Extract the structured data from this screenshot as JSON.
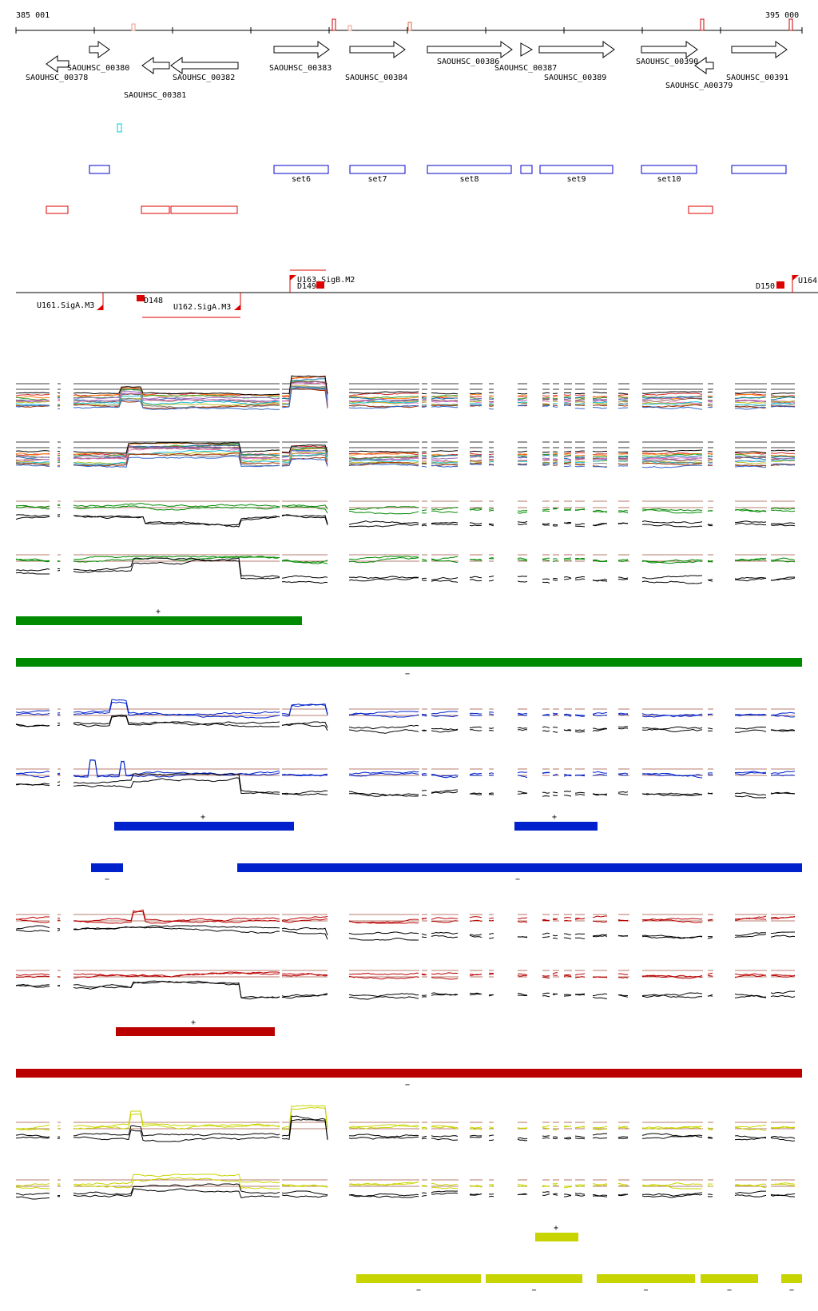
{
  "coord": {
    "start": "385 001",
    "end": "395 000"
  },
  "colors": {
    "gene": "#000000",
    "setBox": "#0000cc",
    "redBox": "#dd0000",
    "green": "#008a00",
    "blue": "#0022cc",
    "red": "#bb0000",
    "yellow": "#c8d400",
    "thresh": "#a05040",
    "black": "#000000",
    "cyan": "#00cccc"
  },
  "genes": [
    {
      "label": "SAOUHSC_00378",
      "strand": "-"
    },
    {
      "label": "SAOUHSC_00380",
      "strand": "+"
    },
    {
      "label": "SAOUHSC_00381",
      "strand": "-"
    },
    {
      "label": "SAOUHSC_00382",
      "strand": "-"
    },
    {
      "label": "SAOUHSC_00383",
      "strand": "+"
    },
    {
      "label": "SAOUHSC_00384",
      "strand": "+"
    },
    {
      "label": "SAOUHSC_00386",
      "strand": "+"
    },
    {
      "label": "SAOUHSC_00387",
      "strand": "+"
    },
    {
      "label": "SAOUHSC_00389",
      "strand": "+"
    },
    {
      "label": "SAOUHSC_00390",
      "strand": "+"
    },
    {
      "label": "SAOUHSC_A00379",
      "strand": "-"
    },
    {
      "label": "SAOUHSC_00391",
      "strand": "+"
    }
  ],
  "sets": [
    "set6",
    "set7",
    "set8",
    "set9",
    "set10"
  ],
  "promoters": [
    {
      "label": "U161.SigA.M3"
    },
    {
      "label": "D148"
    },
    {
      "label": "U162.SigA.M3"
    },
    {
      "label": "U163.SigB.M2"
    },
    {
      "label": "D149"
    },
    {
      "label": "D150"
    },
    {
      "label": "U164"
    }
  ],
  "strandMarks": {
    "plus": "+",
    "minus": "−"
  }
}
